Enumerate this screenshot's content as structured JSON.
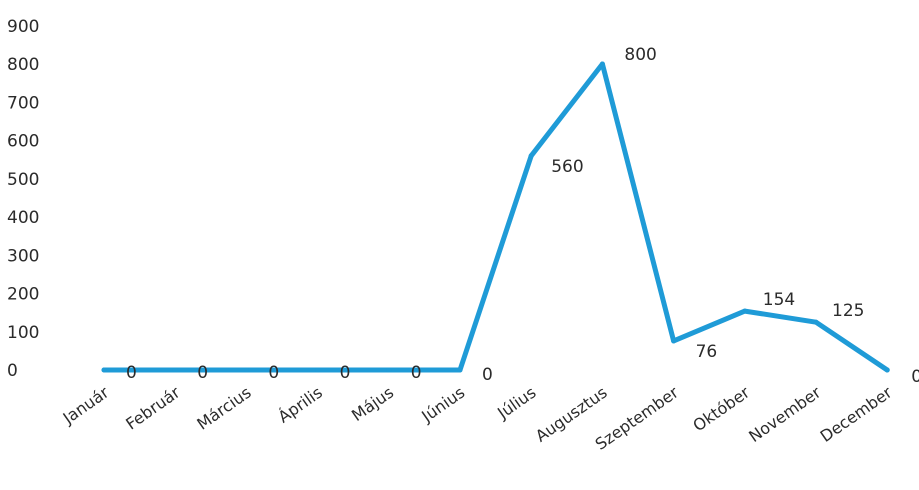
{
  "chart_data": {
    "type": "line",
    "title": "",
    "xlabel": "",
    "ylabel": "",
    "categories": [
      "Január",
      "Február",
      "Március",
      "Április",
      "Május",
      "Június",
      "Július",
      "Augusztus",
      "Szeptember",
      "Október",
      "November",
      "December"
    ],
    "series": [
      {
        "values": [
          0,
          0,
          0,
          0,
          0,
          0,
          560,
          800,
          76,
          154,
          125,
          0
        ],
        "color": "#1f9bd7"
      }
    ],
    "data_labels": [
      "0",
      "0",
      "0",
      "0",
      "0",
      "0",
      "560",
      "800",
      "76",
      "154",
      "125",
      "0"
    ],
    "ylim": [
      0,
      900
    ],
    "yticks": [
      0,
      100,
      200,
      300,
      400,
      500,
      600,
      700,
      800,
      900
    ],
    "ytick_labels": [
      "0",
      "100",
      "200",
      "300",
      "400",
      "500",
      "600",
      "700",
      "800",
      "900"
    ],
    "grid": false,
    "legend": "none"
  }
}
